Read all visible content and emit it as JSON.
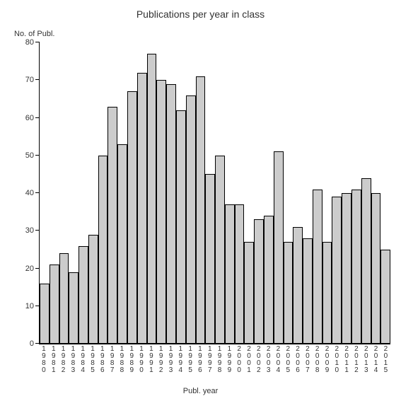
{
  "chart": {
    "type": "bar",
    "title": "Publications per year in class",
    "title_fontsize": 14,
    "y_axis_title": "No. of Publ.",
    "x_axis_title": "Publ. year",
    "label_fontsize": 11,
    "background_color": "#ffffff",
    "bar_fill": "#cccccc",
    "bar_border": "#000000",
    "axis_color": "#000000",
    "text_color": "#333333",
    "tick_label_fontsize": 11,
    "xtick_label_fontsize": 10,
    "ylim": [
      0,
      80
    ],
    "ytick_step": 10,
    "yticks": [
      0,
      10,
      20,
      30,
      40,
      50,
      60,
      70,
      80
    ],
    "categories": [
      "1980",
      "1981",
      "1982",
      "1983",
      "1984",
      "1985",
      "1986",
      "1987",
      "1988",
      "1989",
      "1990",
      "1991",
      "1992",
      "1993",
      "1994",
      "1995",
      "1996",
      "1997",
      "1998",
      "1999",
      "2000",
      "2001",
      "2002",
      "2003",
      "2004",
      "2005",
      "2006",
      "2007",
      "2008",
      "2009",
      "2010",
      "2011",
      "2012",
      "2013",
      "2014",
      "2015"
    ],
    "values": [
      16,
      21,
      24,
      19,
      26,
      29,
      50,
      63,
      53,
      67,
      72,
      77,
      70,
      69,
      62,
      66,
      71,
      45,
      50,
      37,
      37,
      27,
      33,
      34,
      51,
      27,
      31,
      28,
      41,
      27,
      39,
      40,
      41,
      44,
      40,
      25
    ]
  }
}
